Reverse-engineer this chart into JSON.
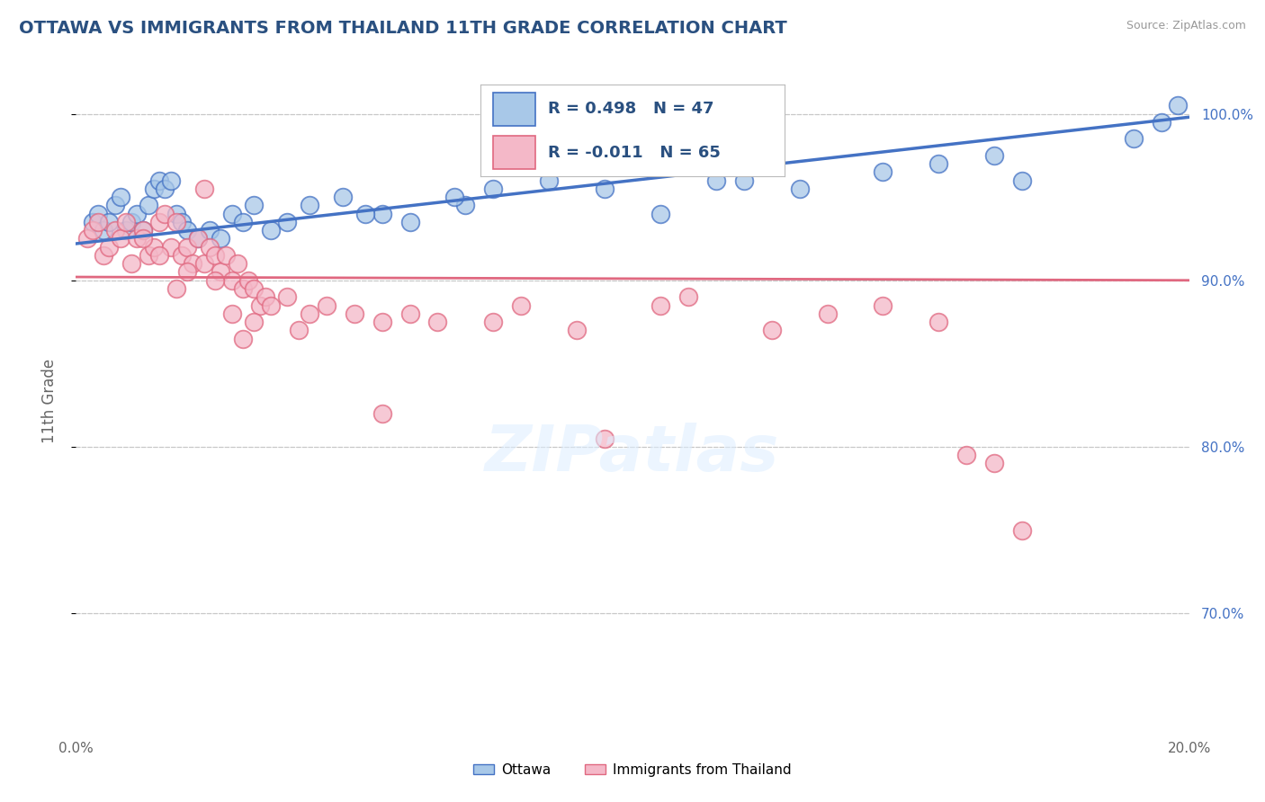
{
  "title": "OTTAWA VS IMMIGRANTS FROM THAILAND 11TH GRADE CORRELATION CHART",
  "source": "Source: ZipAtlas.com",
  "ylabel": "11th Grade",
  "xlim": [
    0.0,
    20.0
  ],
  "ylim": [
    63.0,
    102.5
  ],
  "yticks": [
    70.0,
    80.0,
    90.0,
    100.0
  ],
  "ytick_labels": [
    "70.0%",
    "80.0%",
    "90.0%",
    "100.0%"
  ],
  "grid_color": "#c8c8c8",
  "background_color": "#ffffff",
  "blue_color": "#a8c8e8",
  "blue_edge_color": "#4472c4",
  "pink_color": "#f4b8c8",
  "pink_edge_color": "#e06880",
  "R_blue": 0.498,
  "N_blue": 47,
  "R_pink": -0.011,
  "N_pink": 65,
  "legend_labels": [
    "Ottawa",
    "Immigrants from Thailand"
  ],
  "blue_scatter_x": [
    0.3,
    0.4,
    0.5,
    0.6,
    0.7,
    0.8,
    0.9,
    1.0,
    1.1,
    1.2,
    1.3,
    1.4,
    1.5,
    1.6,
    1.7,
    1.8,
    1.9,
    2.0,
    2.2,
    2.4,
    2.6,
    2.8,
    3.0,
    3.2,
    3.5,
    3.8,
    4.2,
    4.8,
    5.5,
    6.0,
    7.0,
    7.5,
    8.5,
    9.5,
    10.5,
    11.5,
    13.0,
    14.5,
    15.5,
    16.5,
    17.0,
    19.0,
    19.5,
    19.8,
    5.2,
    6.8,
    12.0
  ],
  "blue_scatter_y": [
    93.5,
    94.0,
    93.0,
    93.5,
    94.5,
    95.0,
    93.0,
    93.5,
    94.0,
    93.0,
    94.5,
    95.5,
    96.0,
    95.5,
    96.0,
    94.0,
    93.5,
    93.0,
    92.5,
    93.0,
    92.5,
    94.0,
    93.5,
    94.5,
    93.0,
    93.5,
    94.5,
    95.0,
    94.0,
    93.5,
    94.5,
    95.5,
    96.0,
    95.5,
    94.0,
    96.0,
    95.5,
    96.5,
    97.0,
    97.5,
    96.0,
    98.5,
    99.5,
    100.5,
    94.0,
    95.0,
    96.0
  ],
  "pink_scatter_x": [
    0.2,
    0.3,
    0.4,
    0.5,
    0.6,
    0.7,
    0.8,
    0.9,
    1.0,
    1.1,
    1.2,
    1.3,
    1.4,
    1.5,
    1.6,
    1.7,
    1.8,
    1.9,
    2.0,
    2.1,
    2.2,
    2.3,
    2.4,
    2.5,
    2.6,
    2.7,
    2.8,
    2.9,
    3.0,
    3.1,
    3.2,
    3.3,
    3.4,
    3.5,
    3.8,
    4.2,
    4.5,
    5.0,
    5.5,
    6.0,
    6.5,
    7.5,
    8.0,
    9.0,
    10.5,
    11.0,
    12.5,
    13.5,
    14.5,
    15.5,
    16.0,
    3.0,
    2.8,
    3.2,
    4.0,
    1.5,
    1.2,
    2.5,
    1.8,
    2.0,
    5.5,
    9.5,
    16.5,
    17.0,
    2.3
  ],
  "pink_scatter_y": [
    92.5,
    93.0,
    93.5,
    91.5,
    92.0,
    93.0,
    92.5,
    93.5,
    91.0,
    92.5,
    93.0,
    91.5,
    92.0,
    93.5,
    94.0,
    92.0,
    93.5,
    91.5,
    92.0,
    91.0,
    92.5,
    91.0,
    92.0,
    91.5,
    90.5,
    91.5,
    90.0,
    91.0,
    89.5,
    90.0,
    89.5,
    88.5,
    89.0,
    88.5,
    89.0,
    88.0,
    88.5,
    88.0,
    87.5,
    88.0,
    87.5,
    87.5,
    88.5,
    87.0,
    88.5,
    89.0,
    87.0,
    88.0,
    88.5,
    87.5,
    79.5,
    86.5,
    88.0,
    87.5,
    87.0,
    91.5,
    92.5,
    90.0,
    89.5,
    90.5,
    82.0,
    80.5,
    79.0,
    75.0,
    95.5
  ],
  "blue_line_x": [
    0.0,
    20.0
  ],
  "blue_line_y": [
    92.2,
    99.8
  ],
  "pink_line_x": [
    0.0,
    20.0
  ],
  "pink_line_y": [
    90.2,
    90.0
  ]
}
